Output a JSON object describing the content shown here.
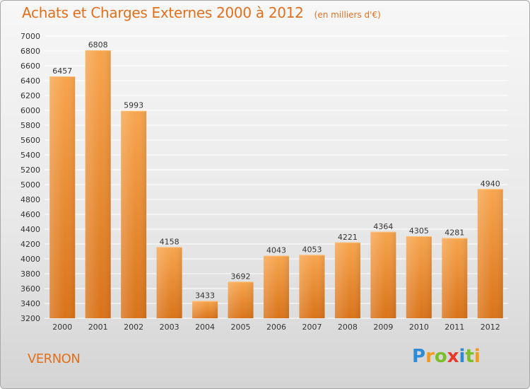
{
  "header": {
    "title": "Achats et Charges Externes 2000 à 2012",
    "units": "(en milliers d'€)"
  },
  "footer": {
    "commune": "VERNON",
    "brand_letters": [
      "P",
      "r",
      "o",
      "x",
      "i",
      "t",
      "i"
    ],
    "brand_colors": [
      "#2e8bd8",
      "#f29a1f",
      "#7cbf2a",
      "#e8392a",
      "#2e8bd8",
      "#7cbf2a",
      "#f29a1f"
    ]
  },
  "chart_data": {
    "type": "bar",
    "title": "Achats et Charges Externes 2000 à 2012",
    "subtitle": "(en milliers d'€)",
    "categories": [
      "2000",
      "2001",
      "2002",
      "2003",
      "2004",
      "2005",
      "2006",
      "2007",
      "2008",
      "2009",
      "2010",
      "2011",
      "2012"
    ],
    "values": [
      6457,
      6808,
      5993,
      4158,
      3433,
      3692,
      4043,
      4053,
      4221,
      4364,
      4305,
      4281,
      4940
    ],
    "ylim": [
      3200,
      7000
    ],
    "yticks": [
      3200,
      3400,
      3600,
      3800,
      4000,
      4200,
      4400,
      4600,
      4800,
      5000,
      5200,
      5400,
      5600,
      5800,
      6000,
      6200,
      6400,
      6600,
      6800,
      7000
    ],
    "grid": true,
    "bar_color": "#f08a2e",
    "legend": "none"
  }
}
